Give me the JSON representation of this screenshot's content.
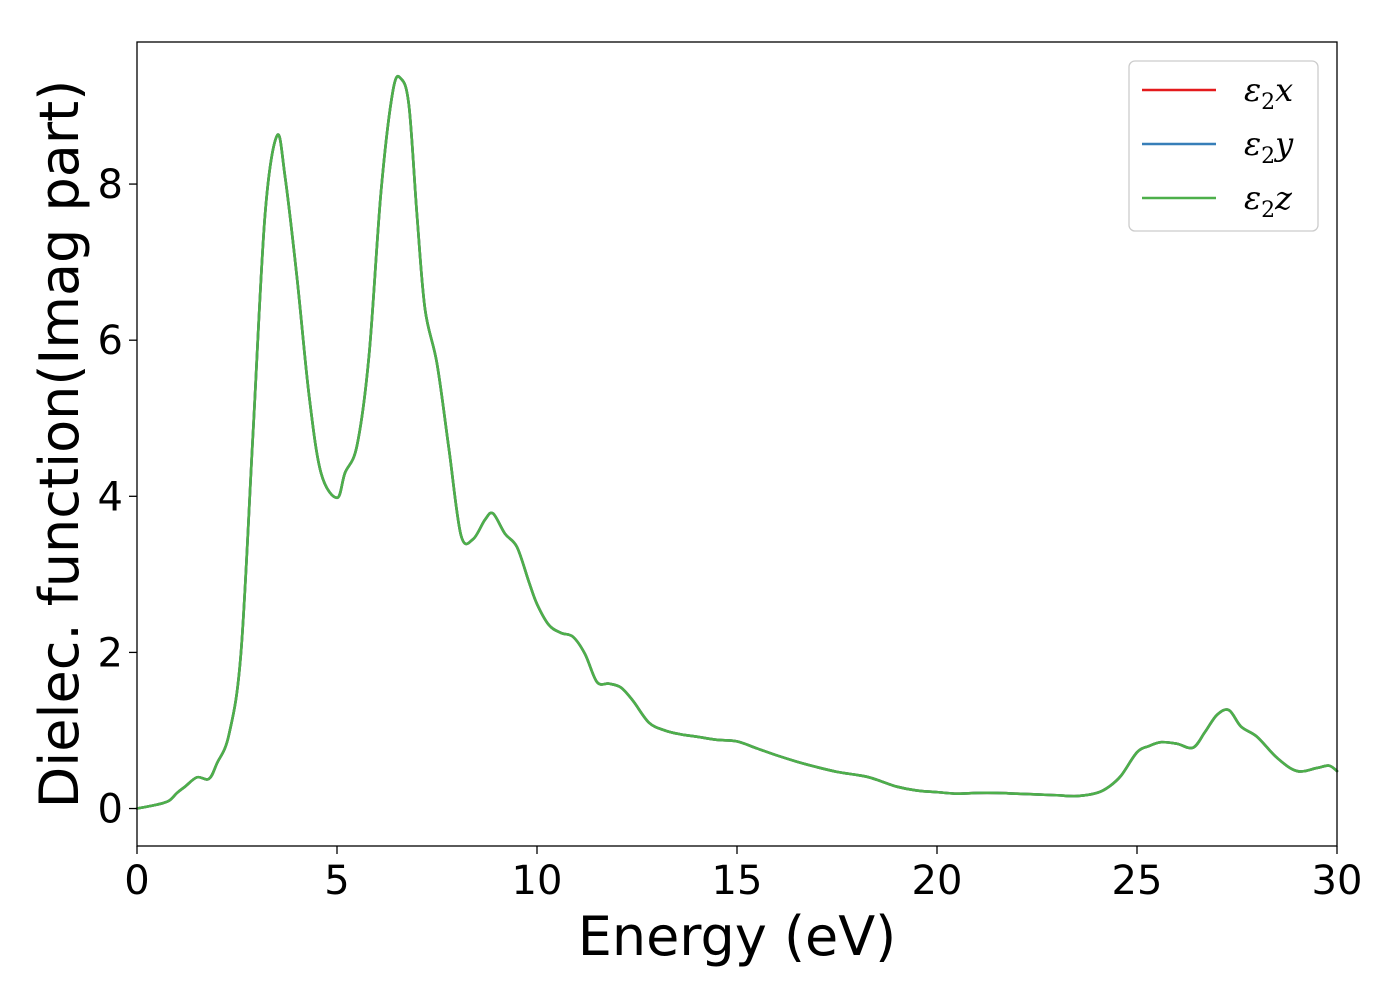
{
  "chart_data": {
    "type": "line",
    "xlabel": "Energy (eV)",
    "ylabel": "Dielec. function(Imag part)",
    "xlim": [
      0,
      30
    ],
    "ylim": [
      -0.48,
      9.82
    ],
    "xticks": [
      "0",
      "5",
      "10",
      "15",
      "20",
      "25",
      "30"
    ],
    "yticks": [
      "0",
      "2",
      "4",
      "6",
      "8"
    ],
    "grid": false,
    "legend_position": "top-right",
    "x": [
      0,
      0.5,
      0.8,
      1.0,
      1.2,
      1.5,
      1.8,
      2.0,
      2.3,
      2.6,
      2.9,
      3.2,
      3.5,
      3.7,
      4.0,
      4.3,
      4.6,
      5.0,
      5.2,
      5.5,
      5.8,
      6.1,
      6.4,
      6.6,
      6.8,
      7.0,
      7.2,
      7.5,
      7.8,
      8.1,
      8.4,
      8.7,
      8.9,
      9.2,
      9.5,
      9.8,
      10.0,
      10.3,
      10.6,
      10.9,
      11.2,
      11.5,
      11.8,
      12.1,
      12.4,
      12.8,
      13.2,
      13.6,
      14.0,
      14.5,
      15.0,
      15.5,
      16.0,
      16.5,
      17.0,
      17.5,
      18.0,
      18.3,
      18.6,
      19.0,
      19.5,
      20.0,
      20.5,
      21.0,
      21.5,
      22.0,
      22.5,
      23.0,
      23.5,
      24.0,
      24.3,
      24.6,
      25.0,
      25.3,
      25.6,
      26.0,
      26.4,
      26.7,
      27.0,
      27.3,
      27.6,
      28.0,
      28.5,
      29.0,
      29.5,
      29.8,
      30.0
    ],
    "series": [
      {
        "name": "ε2x",
        "color": "#e41a1c",
        "values": [
          0.0,
          0.05,
          0.1,
          0.2,
          0.28,
          0.4,
          0.38,
          0.58,
          0.95,
          2.0,
          4.8,
          7.6,
          8.62,
          8.1,
          6.8,
          5.3,
          4.3,
          3.98,
          4.3,
          4.65,
          5.8,
          7.9,
          9.2,
          9.35,
          9.0,
          7.6,
          6.4,
          5.7,
          4.6,
          3.5,
          3.45,
          3.7,
          3.78,
          3.52,
          3.35,
          2.9,
          2.62,
          2.35,
          2.25,
          2.2,
          1.98,
          1.62,
          1.6,
          1.55,
          1.38,
          1.1,
          1.0,
          0.95,
          0.92,
          0.88,
          0.86,
          0.77,
          0.68,
          0.6,
          0.53,
          0.47,
          0.43,
          0.4,
          0.35,
          0.28,
          0.23,
          0.21,
          0.19,
          0.2,
          0.2,
          0.19,
          0.18,
          0.17,
          0.16,
          0.2,
          0.28,
          0.42,
          0.72,
          0.8,
          0.85,
          0.83,
          0.78,
          0.98,
          1.2,
          1.26,
          1.05,
          0.92,
          0.65,
          0.48,
          0.52,
          0.55,
          0.48
        ]
      },
      {
        "name": "ε2y",
        "color": "#377eb8",
        "values": [
          0.0,
          0.05,
          0.1,
          0.2,
          0.28,
          0.4,
          0.38,
          0.58,
          0.95,
          2.0,
          4.8,
          7.6,
          8.62,
          8.1,
          6.8,
          5.3,
          4.3,
          3.98,
          4.3,
          4.65,
          5.8,
          7.9,
          9.2,
          9.35,
          9.0,
          7.6,
          6.4,
          5.7,
          4.6,
          3.5,
          3.45,
          3.7,
          3.78,
          3.52,
          3.35,
          2.9,
          2.62,
          2.35,
          2.25,
          2.2,
          1.98,
          1.62,
          1.6,
          1.55,
          1.38,
          1.1,
          1.0,
          0.95,
          0.92,
          0.88,
          0.86,
          0.77,
          0.68,
          0.6,
          0.53,
          0.47,
          0.43,
          0.4,
          0.35,
          0.28,
          0.23,
          0.21,
          0.19,
          0.2,
          0.2,
          0.19,
          0.18,
          0.17,
          0.16,
          0.2,
          0.28,
          0.42,
          0.72,
          0.8,
          0.85,
          0.83,
          0.78,
          0.98,
          1.2,
          1.26,
          1.05,
          0.92,
          0.65,
          0.48,
          0.52,
          0.55,
          0.48
        ]
      },
      {
        "name": "ε2z",
        "color": "#4daf4a",
        "values": [
          0.0,
          0.05,
          0.1,
          0.2,
          0.28,
          0.4,
          0.38,
          0.58,
          0.95,
          2.0,
          4.8,
          7.6,
          8.62,
          8.1,
          6.8,
          5.3,
          4.3,
          3.98,
          4.3,
          4.65,
          5.8,
          7.9,
          9.2,
          9.35,
          9.0,
          7.6,
          6.4,
          5.7,
          4.6,
          3.5,
          3.45,
          3.7,
          3.78,
          3.52,
          3.35,
          2.9,
          2.62,
          2.35,
          2.25,
          2.2,
          1.98,
          1.62,
          1.6,
          1.55,
          1.38,
          1.1,
          1.0,
          0.95,
          0.92,
          0.88,
          0.86,
          0.77,
          0.68,
          0.6,
          0.53,
          0.47,
          0.43,
          0.4,
          0.35,
          0.28,
          0.23,
          0.21,
          0.19,
          0.2,
          0.2,
          0.19,
          0.18,
          0.17,
          0.16,
          0.2,
          0.28,
          0.42,
          0.72,
          0.8,
          0.85,
          0.83,
          0.78,
          0.98,
          1.2,
          1.26,
          1.05,
          0.92,
          0.65,
          0.48,
          0.52,
          0.55,
          0.48
        ]
      }
    ],
    "legend": [
      {
        "symbol": "ε",
        "sub": "2",
        "var": "x"
      },
      {
        "symbol": "ε",
        "sub": "2",
        "var": "y"
      },
      {
        "symbol": "ε",
        "sub": "2",
        "var": "z"
      }
    ]
  }
}
